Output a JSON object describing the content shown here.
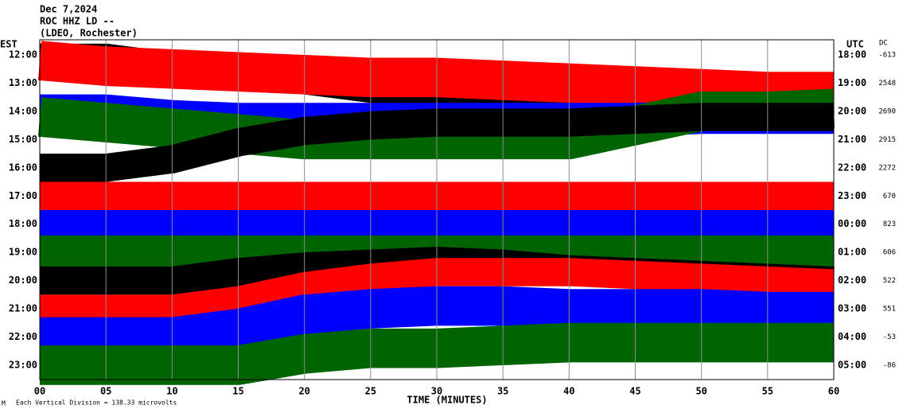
{
  "chart_data": {
    "type": "helicorder",
    "title": "Dec 7,2024",
    "station": "ROC HHZ LD --",
    "network": "(LDEO, Rochester)",
    "left_axis_label": "EST",
    "right_axis_label": "UTC",
    "dc_label": "DC",
    "x_label": "TIME (MINUTES)",
    "scale_note": "Each Vertical Division = 138.33 microvolts",
    "corner_mark": "M",
    "xlim": [
      0,
      60
    ],
    "xticks": [
      {
        "value": 0,
        "label": "00"
      },
      {
        "value": 5,
        "label": "05"
      },
      10,
      15,
      20,
      25,
      30,
      35,
      40,
      45,
      50,
      55,
      60
    ],
    "grid": true,
    "x": [
      0,
      5,
      10,
      15,
      20,
      25,
      30,
      35,
      40,
      45,
      50,
      55,
      60
    ],
    "rows": [
      {
        "est": "12:00",
        "utc": "18:00",
        "dc": -613,
        "color": "#000000",
        "amplitude": 0.4,
        "offsets": [
          0,
          0,
          -0.3,
          -0.7,
          -1,
          -1.3,
          -1.5,
          -1.8,
          -2,
          -2,
          -2,
          -2,
          -2
        ]
      },
      {
        "est": "13:00",
        "utc": "19:00",
        "dc": 2548,
        "color": "#ff0000",
        "amplitude": 0.7,
        "offsets": [
          0.8,
          0.6,
          0.5,
          0.4,
          0.3,
          0.2,
          0.2,
          0.1,
          0,
          -0.1,
          -0.2,
          -0.3,
          -0.3
        ]
      },
      {
        "est": "14:00",
        "utc": "20:00",
        "dc": 2690,
        "color": "#0000ff",
        "amplitude": 0.6,
        "offsets": [
          0,
          0,
          -0.2,
          -0.3,
          -0.3,
          -0.3,
          -0.3,
          -0.3,
          -0.3,
          -0.3,
          -0.2,
          -0.2,
          -0.2
        ]
      },
      {
        "est": "15:00",
        "utc": "21:00",
        "dc": 2915,
        "color": "#006400",
        "amplitude": 0.7,
        "offsets": [
          0.8,
          0.6,
          0.4,
          0.2,
          0,
          0,
          0,
          0,
          0,
          0.5,
          1,
          1,
          1.1
        ]
      },
      {
        "est": "16:00",
        "utc": "22:00",
        "dc": 2272,
        "color": "#000000",
        "amplitude": 0.5,
        "offsets": [
          0,
          0,
          0.3,
          0.9,
          1.3,
          1.5,
          1.6,
          1.6,
          1.6,
          1.7,
          1.8,
          1.8,
          1.8
        ]
      },
      {
        "est": "17:00",
        "utc": "23:00",
        "dc": 670,
        "color": "#ff0000",
        "amplitude": 0.5,
        "offsets": [
          0,
          0,
          0,
          0,
          0,
          0,
          0,
          0,
          0,
          0,
          0,
          0,
          0
        ]
      },
      {
        "est": "18:00",
        "utc": "00:00",
        "dc": 823,
        "color": "#0000ff",
        "amplitude": 0.5,
        "offsets": [
          0,
          0,
          0,
          0,
          0,
          0,
          0,
          0,
          0,
          0,
          0,
          0,
          0
        ]
      },
      {
        "est": "19:00",
        "utc": "01:00",
        "dc": 606,
        "color": "#006400",
        "amplitude": 0.6,
        "offsets": [
          0,
          0,
          0,
          0,
          0,
          0,
          0,
          0,
          0,
          0,
          0,
          0,
          0
        ]
      },
      {
        "est": "20:00",
        "utc": "02:00",
        "dc": 522,
        "color": "#000000",
        "amplitude": 0.5,
        "offsets": [
          0,
          0,
          0,
          0.3,
          0.5,
          0.6,
          0.7,
          0.6,
          0.4,
          0.3,
          0.2,
          0.1,
          0
        ]
      },
      {
        "est": "21:00",
        "utc": "03:00",
        "dc": 551,
        "color": "#ff0000",
        "amplitude": 0.5,
        "offsets": [
          0,
          0,
          0,
          0.3,
          0.8,
          1.1,
          1.3,
          1.3,
          1.3,
          1.2,
          1.1,
          1,
          0.9
        ]
      },
      {
        "est": "22:00",
        "utc": "04:00",
        "dc": -53,
        "color": "#0000ff",
        "amplitude": 0.7,
        "offsets": [
          0,
          0,
          0,
          0.3,
          0.8,
          1,
          1.1,
          1.1,
          1,
          1,
          1,
          0.9,
          0.9
        ]
      },
      {
        "est": "23:00",
        "utc": "05:00",
        "dc": -86,
        "color": "#006400",
        "amplitude": 0.7,
        "offsets": [
          0,
          0,
          0,
          0,
          0.4,
          0.6,
          0.6,
          0.7,
          0.8,
          0.8,
          0.8,
          0.8,
          0.8
        ]
      }
    ]
  }
}
